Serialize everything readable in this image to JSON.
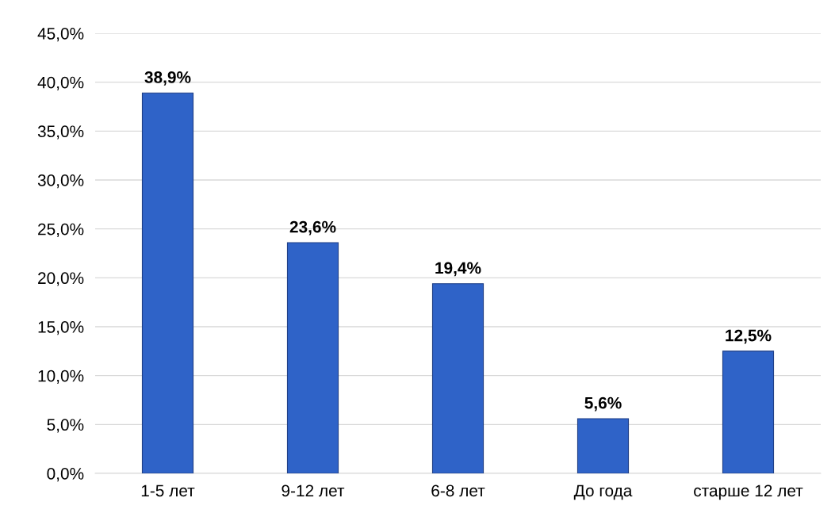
{
  "chart_data": {
    "type": "bar",
    "categories": [
      "1-5 лет",
      "9-12 лет",
      "6-8 лет",
      "До года",
      "старше 12 лет"
    ],
    "values": [
      38.9,
      23.6,
      19.4,
      5.6,
      12.5
    ],
    "value_labels": [
      "38,9%",
      "23,6%",
      "19,4%",
      "5,6%",
      "12,5%"
    ],
    "color": "#2f63c8",
    "ylim": [
      0,
      45
    ],
    "yticks": [
      {
        "value": 0,
        "label": "0,0%"
      },
      {
        "value": 5,
        "label": "5,0%"
      },
      {
        "value": 10,
        "label": "10,0%"
      },
      {
        "value": 15,
        "label": "15,0%"
      },
      {
        "value": 20,
        "label": "20,0%"
      },
      {
        "value": 25,
        "label": "25,0%"
      },
      {
        "value": 30,
        "label": "30,0%"
      },
      {
        "value": 35,
        "label": "35,0%"
      },
      {
        "value": 40,
        "label": "40,0%"
      },
      {
        "value": 45,
        "label": "45,0%"
      }
    ],
    "grid": "y"
  }
}
